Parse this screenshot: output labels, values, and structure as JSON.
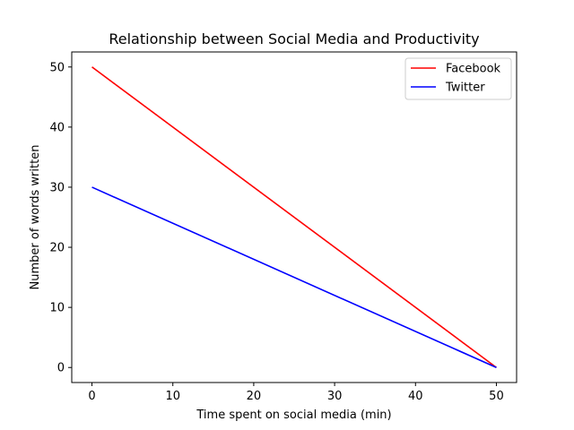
{
  "chart_data": {
    "type": "line",
    "title": "Relationship between Social Media and Productivity",
    "xlabel": "Time spent on social media (min)",
    "ylabel": "Number of words written",
    "xlim": [
      -2.5,
      52.5
    ],
    "ylim": [
      -2.5,
      52.5
    ],
    "xticks": [
      0,
      10,
      20,
      30,
      40,
      50
    ],
    "yticks": [
      0,
      10,
      20,
      30,
      40,
      50
    ],
    "legend_position": "top-right",
    "grid": false,
    "series": [
      {
        "name": "Facebook",
        "color": "#ff0000",
        "x": [
          0,
          50
        ],
        "y": [
          50,
          0
        ]
      },
      {
        "name": "Twitter",
        "color": "#0000ff",
        "x": [
          0,
          50
        ],
        "y": [
          30,
          0
        ]
      }
    ]
  }
}
